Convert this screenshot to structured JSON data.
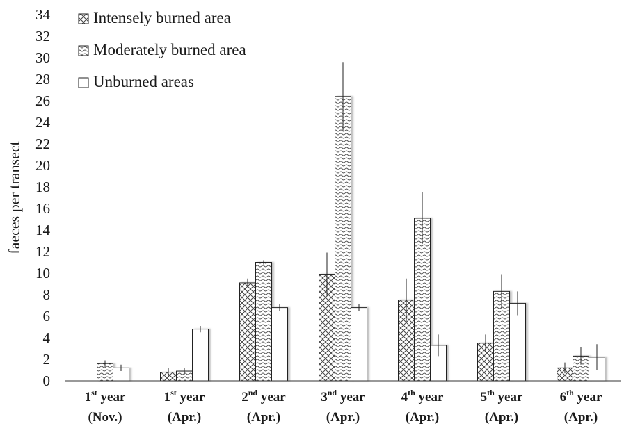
{
  "chart_data": {
    "type": "bar",
    "title": "",
    "xlabel": "",
    "ylabel": "faeces per transect",
    "ylim": [
      0,
      34
    ],
    "ytick_step": 2,
    "grid": false,
    "legend_position": "top-left",
    "categories": [
      {
        "ord": "1",
        "sup": "st",
        "word": " year",
        "period": "(Nov.)"
      },
      {
        "ord": "1",
        "sup": "st",
        "word": " year",
        "period": "(Apr.)"
      },
      {
        "ord": "2",
        "sup": "nd",
        "word": " year",
        "period": "(Apr.)"
      },
      {
        "ord": "3",
        "sup": "nd",
        "word": " year",
        "period": "(Apr.)"
      },
      {
        "ord": "4",
        "sup": "th",
        "word": " year",
        "period": "(Apr.)"
      },
      {
        "ord": "5",
        "sup": "th",
        "word": " year",
        "period": "(Apr.)"
      },
      {
        "ord": "6",
        "sup": "th",
        "word": " year",
        "period": "(Apr.)"
      }
    ],
    "series": [
      {
        "name": "Intensely burned area",
        "pattern": "crosshatch",
        "values": [
          0,
          0.8,
          9.1,
          9.9,
          7.5,
          3.5,
          1.2
        ],
        "errors": [
          0,
          0.4,
          0.4,
          2.0,
          2.0,
          0.8,
          0.5
        ]
      },
      {
        "name": "Moderately burned area",
        "pattern": "wave",
        "values": [
          1.6,
          0.9,
          11.0,
          26.4,
          15.1,
          8.3,
          2.3
        ],
        "errors": [
          0.3,
          0.3,
          0.2,
          3.2,
          2.4,
          1.6,
          0.8
        ]
      },
      {
        "name": "Unburned areas",
        "pattern": "plain",
        "values": [
          1.2,
          4.8,
          6.8,
          6.8,
          3.3,
          7.2,
          2.2
        ],
        "errors": [
          0.3,
          0.3,
          0.3,
          0.3,
          1.0,
          1.1,
          1.2
        ]
      }
    ]
  }
}
